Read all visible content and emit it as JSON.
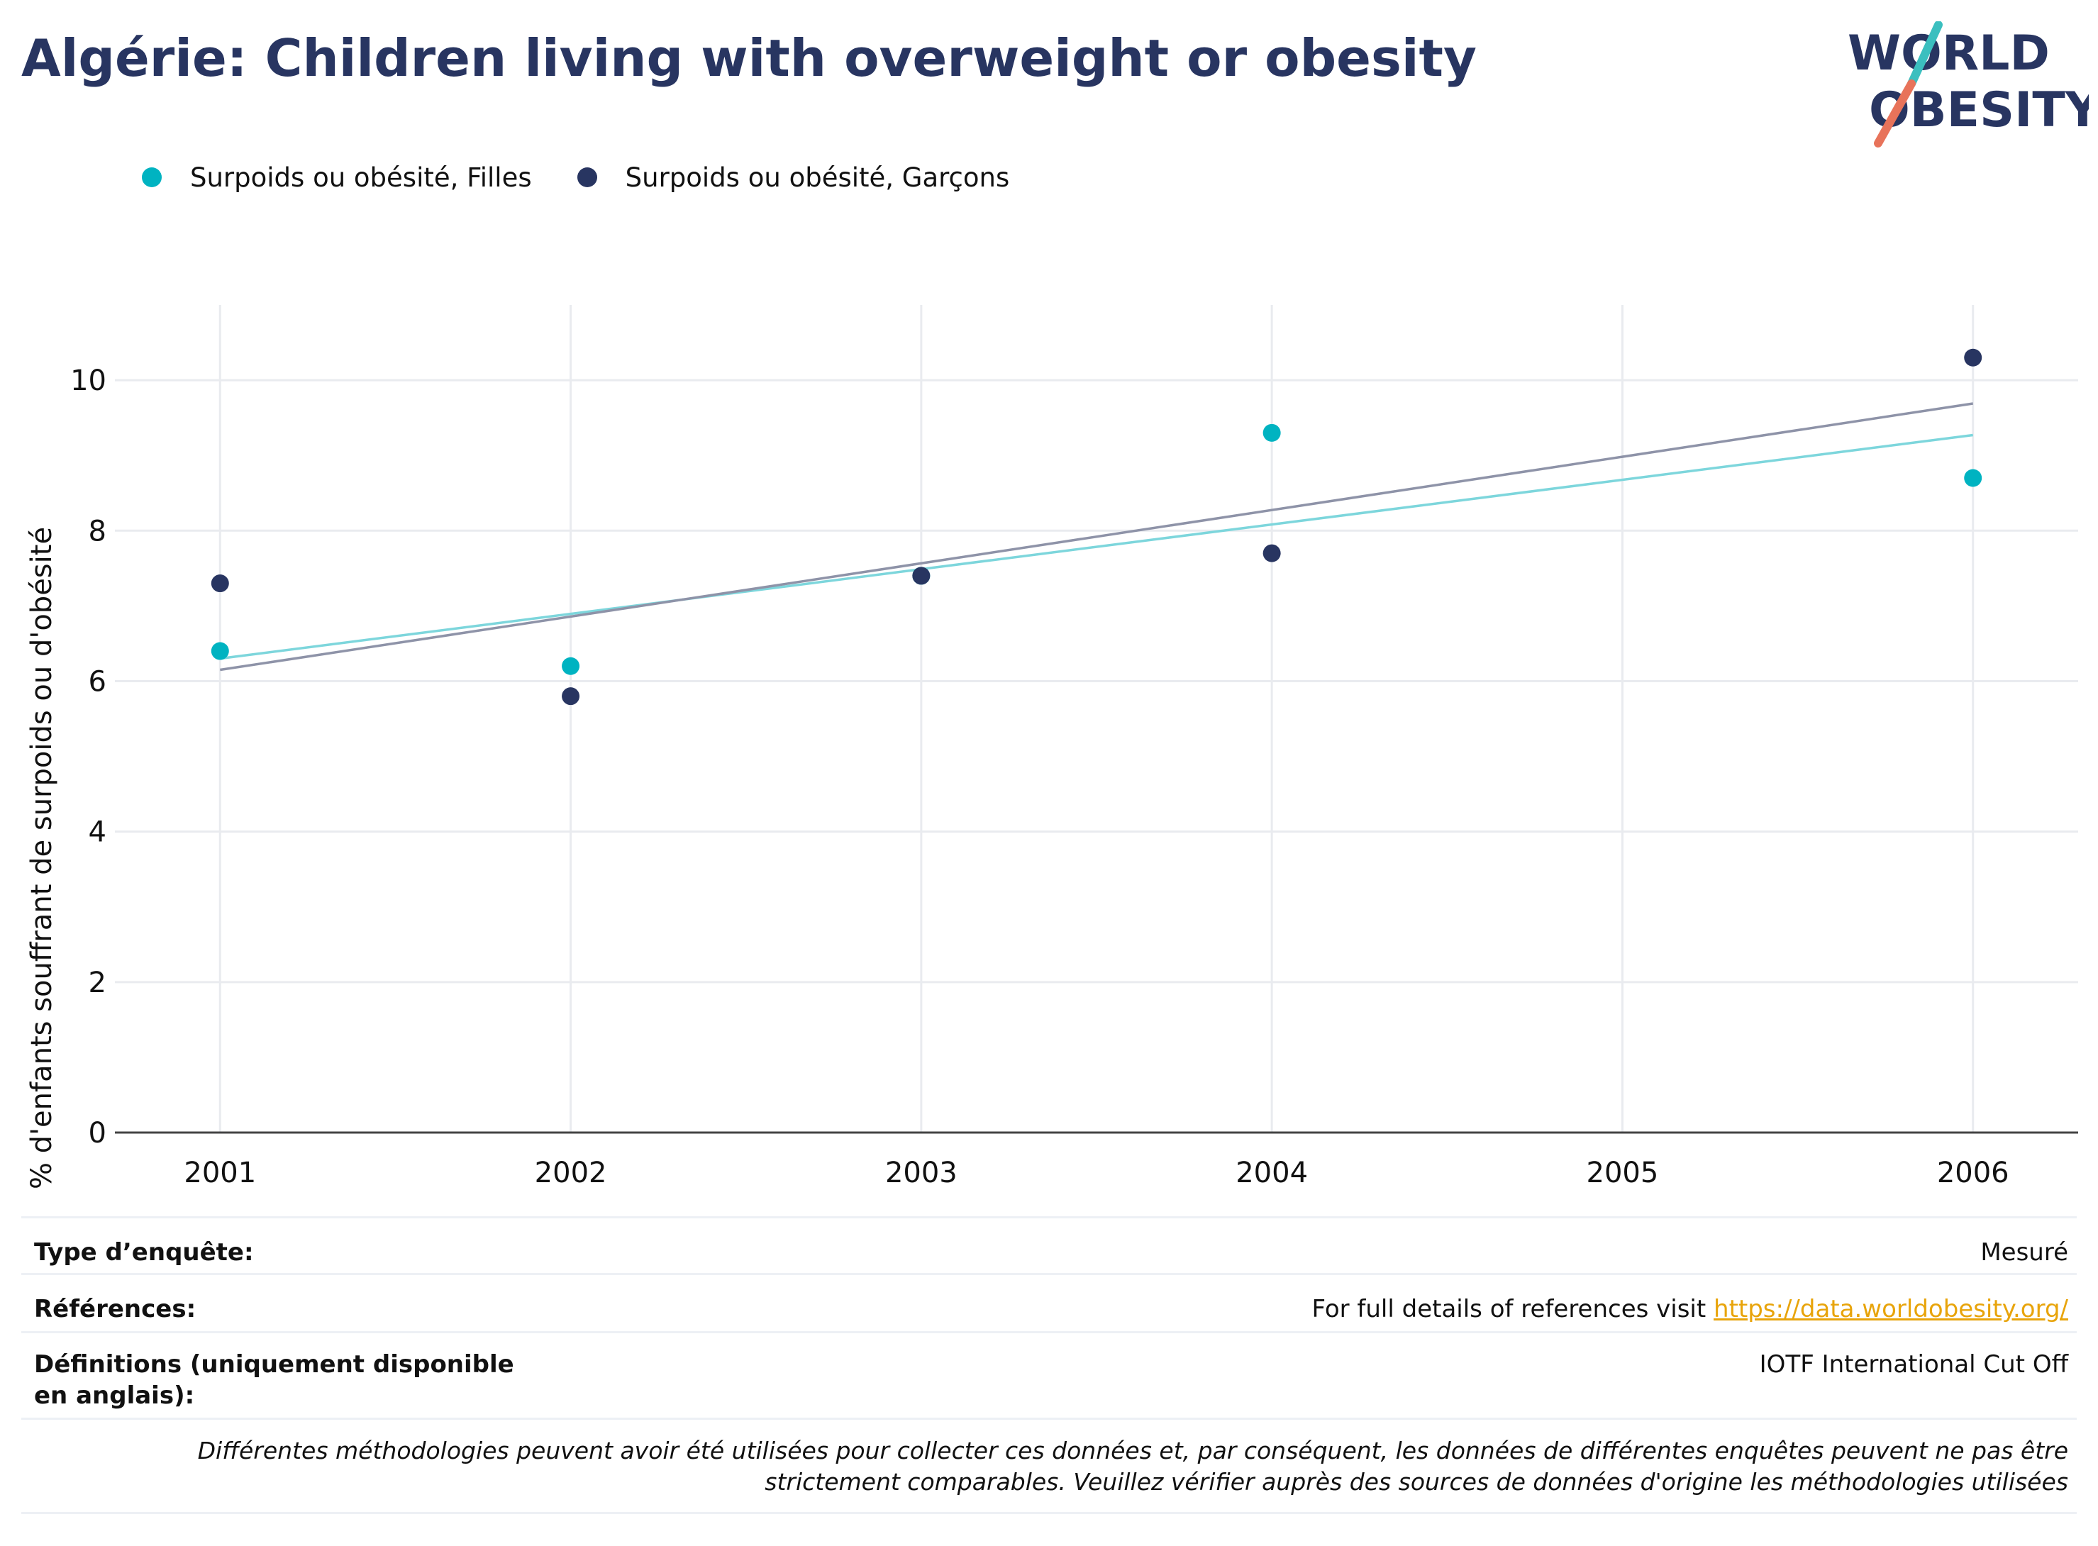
{
  "title": "Algérie: Children living with overweight or obesity",
  "logo": {
    "line1": "WORLD",
    "line2": "OBESITY",
    "colors": {
      "text": "#283561",
      "teal": "#3bbfbf",
      "coral": "#e8735a"
    }
  },
  "colors": {
    "filles": "#00b3c1",
    "garcons": "#283561",
    "filles_trend": "#7dd6dc",
    "garcons_trend": "#8e93a8",
    "grid": "#e9ebef",
    "axis": "#444444",
    "link": "#e8a40b"
  },
  "chart_data": {
    "type": "scatter",
    "title": "Algérie: Children living with overweight or obesity",
    "xlabel": "",
    "ylabel": "% d'enfants souffrant de surpoids ou d'obésité",
    "xlim": [
      2000.7,
      2006.3
    ],
    "ylim": [
      0,
      11
    ],
    "x_ticks": [
      2001,
      2002,
      2003,
      2004,
      2005,
      2006
    ],
    "y_ticks": [
      0,
      2,
      4,
      6,
      8,
      10
    ],
    "grid": true,
    "legend_position": "top-left",
    "series": [
      {
        "name": "Surpoids ou obésité, Filles",
        "color": "#00b3c1",
        "points": [
          {
            "x": 2001,
            "y": 6.4
          },
          {
            "x": 2002,
            "y": 6.2
          },
          {
            "x": 2003,
            "y": 7.4
          },
          {
            "x": 2004,
            "y": 9.3
          },
          {
            "x": 2006,
            "y": 8.7
          }
        ],
        "trend": {
          "x": [
            2001,
            2006
          ],
          "y": [
            6.3,
            9.27
          ],
          "color": "#7dd6dc"
        }
      },
      {
        "name": "Surpoids ou obésité, Garçons",
        "color": "#283561",
        "points": [
          {
            "x": 2001,
            "y": 7.3
          },
          {
            "x": 2002,
            "y": 5.8
          },
          {
            "x": 2003,
            "y": 7.4
          },
          {
            "x": 2004,
            "y": 7.7
          },
          {
            "x": 2006,
            "y": 10.3
          }
        ],
        "trend": {
          "x": [
            2001,
            2006
          ],
          "y": [
            6.15,
            9.69
          ],
          "color": "#8e93a8"
        }
      }
    ]
  },
  "info": {
    "survey_type": {
      "label": "Type d’enquête:",
      "value": "Mesuré"
    },
    "references": {
      "label": "Références:",
      "value_prefix": "For full details of references visit ",
      "link": "https://data.worldobesity.org/"
    },
    "definitions": {
      "label": "Définitions (uniquement disponible en anglais):",
      "value": "IOTF International Cut Off"
    },
    "note": "Différentes méthodologies peuvent avoir été utilisées pour collecter ces données et, par conséquent, les données de différentes enquêtes peuvent ne pas être strictement comparables. Veuillez vérifier auprès des sources de données d'origine les méthodologies utilisées"
  }
}
